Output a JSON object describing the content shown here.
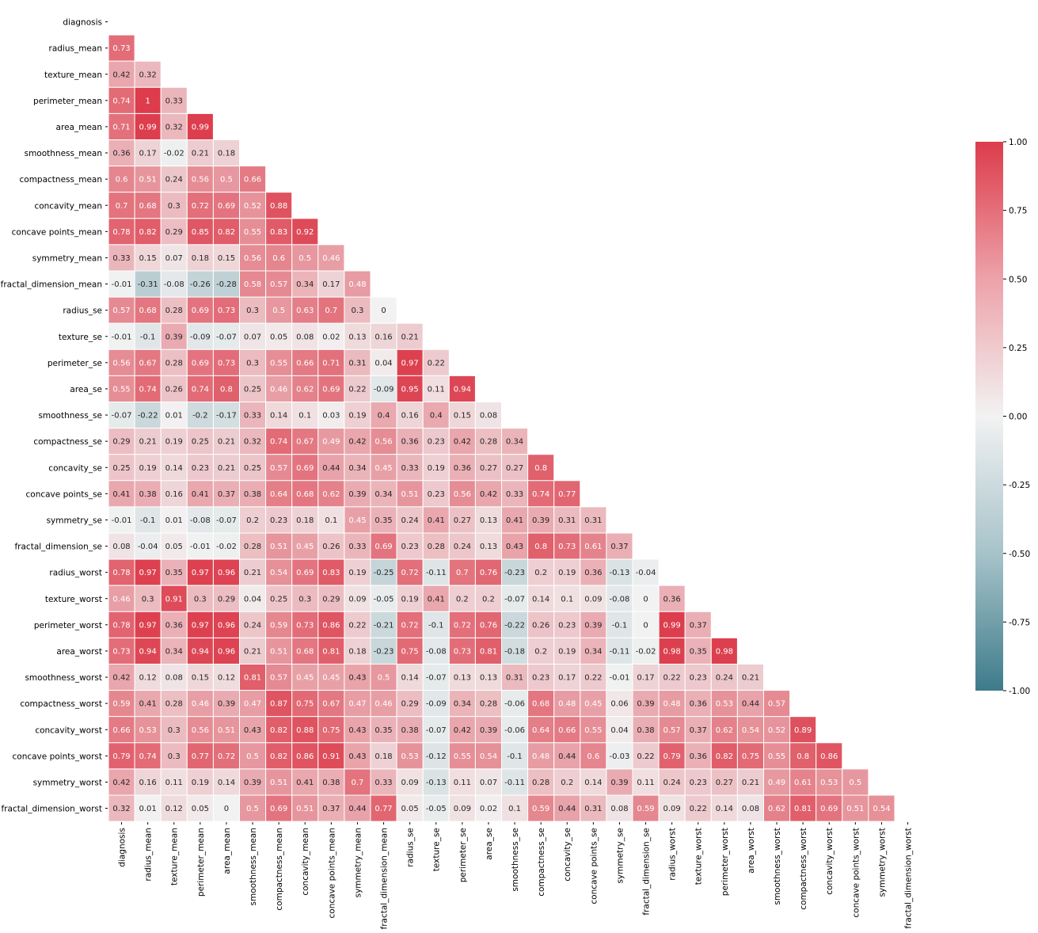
{
  "chart_data": {
    "type": "heatmap",
    "labels": [
      "diagnosis",
      "radius_mean",
      "texture_mean",
      "perimeter_mean",
      "area_mean",
      "smoothness_mean",
      "compactness_mean",
      "concavity_mean",
      "concave points_mean",
      "symmetry_mean",
      "fractal_dimension_mean",
      "radius_se",
      "texture_se",
      "perimeter_se",
      "area_se",
      "smoothness_se",
      "compactness_se",
      "concavity_se",
      "concave points_se",
      "symmetry_se",
      "fractal_dimension_se",
      "radius_worst",
      "texture_worst",
      "perimeter_worst",
      "area_worst",
      "smoothness_worst",
      "compactness_worst",
      "concavity_worst",
      "concave points_worst",
      "symmetry_worst",
      "fractal_dimension_worst"
    ],
    "lower_triangle": [
      [],
      [
        0.73
      ],
      [
        0.42,
        0.32
      ],
      [
        0.74,
        1,
        0.33
      ],
      [
        0.71,
        0.99,
        0.32,
        0.99
      ],
      [
        0.36,
        0.17,
        -0.02,
        0.21,
        0.18
      ],
      [
        0.6,
        0.51,
        0.24,
        0.56,
        0.5,
        0.66
      ],
      [
        0.7,
        0.68,
        0.3,
        0.72,
        0.69,
        0.52,
        0.88
      ],
      [
        0.78,
        0.82,
        0.29,
        0.85,
        0.82,
        0.55,
        0.83,
        0.92
      ],
      [
        0.33,
        0.15,
        0.07,
        0.18,
        0.15,
        0.56,
        0.6,
        0.5,
        0.46
      ],
      [
        -0.01,
        -0.31,
        -0.08,
        -0.26,
        -0.28,
        0.58,
        0.57,
        0.34,
        0.17,
        0.48
      ],
      [
        0.57,
        0.68,
        0.28,
        0.69,
        0.73,
        0.3,
        0.5,
        0.63,
        0.7,
        0.3,
        0
      ],
      [
        -0.01,
        -0.1,
        0.39,
        -0.09,
        -0.07,
        0.07,
        0.05,
        0.08,
        0.02,
        0.13,
        0.16,
        0.21
      ],
      [
        0.56,
        0.67,
        0.28,
        0.69,
        0.73,
        0.3,
        0.55,
        0.66,
        0.71,
        0.31,
        0.04,
        0.97,
        0.22
      ],
      [
        0.55,
        0.74,
        0.26,
        0.74,
        0.8,
        0.25,
        0.46,
        0.62,
        0.69,
        0.22,
        -0.09,
        0.95,
        0.11,
        0.94
      ],
      [
        -0.07,
        -0.22,
        0.01,
        -0.2,
        -0.17,
        0.33,
        0.14,
        0.1,
        0.03,
        0.19,
        0.4,
        0.16,
        0.4,
        0.15,
        0.08
      ],
      [
        0.29,
        0.21,
        0.19,
        0.25,
        0.21,
        0.32,
        0.74,
        0.67,
        0.49,
        0.42,
        0.56,
        0.36,
        0.23,
        0.42,
        0.28,
        0.34
      ],
      [
        0.25,
        0.19,
        0.14,
        0.23,
        0.21,
        0.25,
        0.57,
        0.69,
        0.44,
        0.34,
        0.45,
        0.33,
        0.19,
        0.36,
        0.27,
        0.27,
        0.8
      ],
      [
        0.41,
        0.38,
        0.16,
        0.41,
        0.37,
        0.38,
        0.64,
        0.68,
        0.62,
        0.39,
        0.34,
        0.51,
        0.23,
        0.56,
        0.42,
        0.33,
        0.74,
        0.77
      ],
      [
        -0.01,
        -0.1,
        0.01,
        -0.08,
        -0.07,
        0.2,
        0.23,
        0.18,
        0.1,
        0.45,
        0.35,
        0.24,
        0.41,
        0.27,
        0.13,
        0.41,
        0.39,
        0.31,
        0.31
      ],
      [
        0.08,
        -0.04,
        0.05,
        -0.01,
        -0.02,
        0.28,
        0.51,
        0.45,
        0.26,
        0.33,
        0.69,
        0.23,
        0.28,
        0.24,
        0.13,
        0.43,
        0.8,
        0.73,
        0.61,
        0.37
      ],
      [
        0.78,
        0.97,
        0.35,
        0.97,
        0.96,
        0.21,
        0.54,
        0.69,
        0.83,
        0.19,
        -0.25,
        0.72,
        -0.11,
        0.7,
        0.76,
        -0.23,
        0.2,
        0.19,
        0.36,
        -0.13,
        -0.04
      ],
      [
        0.46,
        0.3,
        0.91,
        0.3,
        0.29,
        0.04,
        0.25,
        0.3,
        0.29,
        0.09,
        -0.05,
        0.19,
        0.41,
        0.2,
        0.2,
        -0.07,
        0.14,
        0.1,
        0.09,
        -0.08,
        0,
        0.36
      ],
      [
        0.78,
        0.97,
        0.36,
        0.97,
        0.96,
        0.24,
        0.59,
        0.73,
        0.86,
        0.22,
        -0.21,
        0.72,
        -0.1,
        0.72,
        0.76,
        -0.22,
        0.26,
        0.23,
        0.39,
        -0.1,
        0,
        0.99,
        0.37
      ],
      [
        0.73,
        0.94,
        0.34,
        0.94,
        0.96,
        0.21,
        0.51,
        0.68,
        0.81,
        0.18,
        -0.23,
        0.75,
        -0.08,
        0.73,
        0.81,
        -0.18,
        0.2,
        0.19,
        0.34,
        -0.11,
        -0.02,
        0.98,
        0.35,
        0.98
      ],
      [
        0.42,
        0.12,
        0.08,
        0.15,
        0.12,
        0.81,
        0.57,
        0.45,
        0.45,
        0.43,
        0.5,
        0.14,
        -0.07,
        0.13,
        0.13,
        0.31,
        0.23,
        0.17,
        0.22,
        -0.01,
        0.17,
        0.22,
        0.23,
        0.24,
        0.21
      ],
      [
        0.59,
        0.41,
        0.28,
        0.46,
        0.39,
        0.47,
        0.87,
        0.75,
        0.67,
        0.47,
        0.46,
        0.29,
        -0.09,
        0.34,
        0.28,
        -0.06,
        0.68,
        0.48,
        0.45,
        0.06,
        0.39,
        0.48,
        0.36,
        0.53,
        0.44,
        0.57
      ],
      [
        0.66,
        0.53,
        0.3,
        0.56,
        0.51,
        0.43,
        0.82,
        0.88,
        0.75,
        0.43,
        0.35,
        0.38,
        -0.07,
        0.42,
        0.39,
        -0.06,
        0.64,
        0.66,
        0.55,
        0.04,
        0.38,
        0.57,
        0.37,
        0.62,
        0.54,
        0.52,
        0.89
      ],
      [
        0.79,
        0.74,
        0.3,
        0.77,
        0.72,
        0.5,
        0.82,
        0.86,
        0.91,
        0.43,
        0.18,
        0.53,
        -0.12,
        0.55,
        0.54,
        -0.1,
        0.48,
        0.44,
        0.6,
        -0.03,
        0.22,
        0.79,
        0.36,
        0.82,
        0.75,
        0.55,
        0.8,
        0.86
      ],
      [
        0.42,
        0.16,
        0.11,
        0.19,
        0.14,
        0.39,
        0.51,
        0.41,
        0.38,
        0.7,
        0.33,
        0.09,
        -0.13,
        0.11,
        0.07,
        -0.11,
        0.28,
        0.2,
        0.14,
        0.39,
        0.11,
        0.24,
        0.23,
        0.27,
        0.21,
        0.49,
        0.61,
        0.53,
        0.5
      ],
      [
        0.32,
        0.01,
        0.12,
        0.05,
        0,
        0.5,
        0.69,
        0.51,
        0.37,
        0.44,
        0.77,
        0.05,
        -0.05,
        0.09,
        0.02,
        0.1,
        0.59,
        0.44,
        0.31,
        0.08,
        0.59,
        0.09,
        0.22,
        0.14,
        0.08,
        0.62,
        0.81,
        0.69,
        0.51,
        0.54
      ]
    ],
    "vmin": -1,
    "vmax": 1,
    "colorbar_ticks": [
      "1.00",
      "0.75",
      "0.50",
      "0.25",
      "0.00",
      "-0.25",
      "-0.50",
      "-0.75",
      "-1.00"
    ],
    "colormap": {
      "low": "#3d7b8a",
      "mid": "#f2f2f2",
      "high": "#dc3c4b"
    }
  }
}
